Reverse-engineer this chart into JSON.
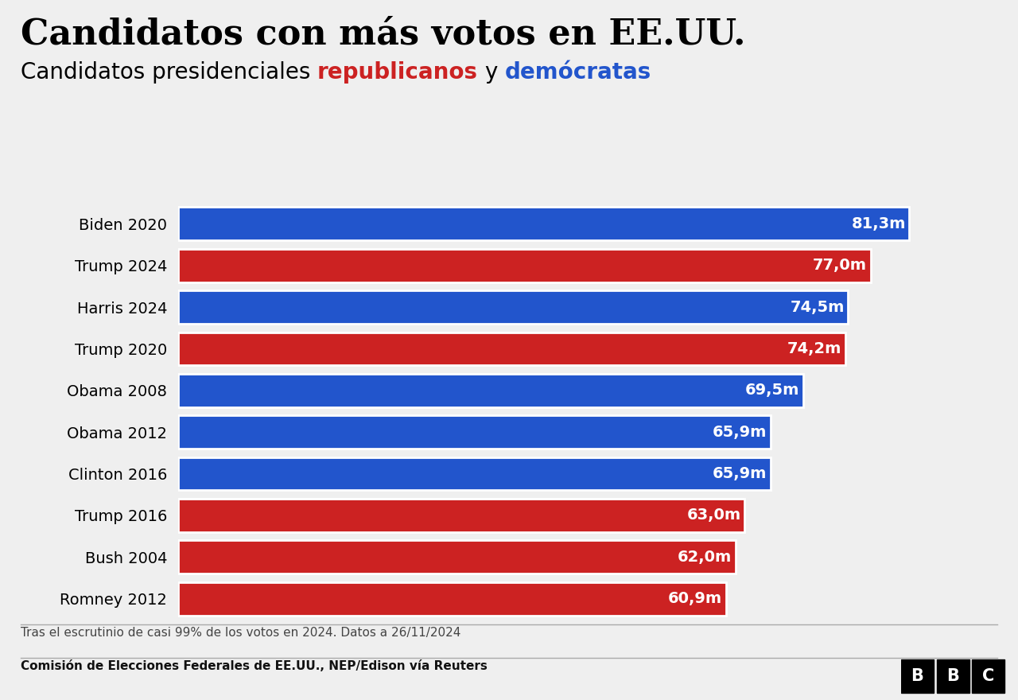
{
  "title": "Candidatos con más votos en EE.UU.",
  "subtitle_plain": "Candidatos presidenciales ",
  "subtitle_rep": "republicanos",
  "subtitle_mid": " y ",
  "subtitle_dem": "demócratas",
  "candidates": [
    "Biden 2020",
    "Trump 2024",
    "Harris 2024",
    "Trump 2020",
    "Obama 2008",
    "Obama 2012",
    "Clinton 2016",
    "Trump 2016",
    "Bush 2004",
    "Romney 2012"
  ],
  "values": [
    81.3,
    77.0,
    74.5,
    74.2,
    69.5,
    65.9,
    65.9,
    63.0,
    62.0,
    60.9
  ],
  "labels": [
    "81,3m",
    "77,0m",
    "74,5m",
    "74,2m",
    "69,5m",
    "65,9m",
    "65,9m",
    "63,0m",
    "62,0m",
    "60,9m"
  ],
  "colors": [
    "#2255cc",
    "#cc2222",
    "#2255cc",
    "#cc2222",
    "#2255cc",
    "#2255cc",
    "#2255cc",
    "#cc2222",
    "#cc2222",
    "#cc2222"
  ],
  "rep_color": "#cc2222",
  "dem_color": "#2255cc",
  "background_color": "#efefef",
  "footnote": "Tras el escrutinio de casi 99% de los votos en 2024. Datos a 26/11/2024",
  "source": "Comisión de Elecciones Federales de EE.UU., NEP/Edison vía Reuters",
  "xlim": [
    0,
    90
  ]
}
